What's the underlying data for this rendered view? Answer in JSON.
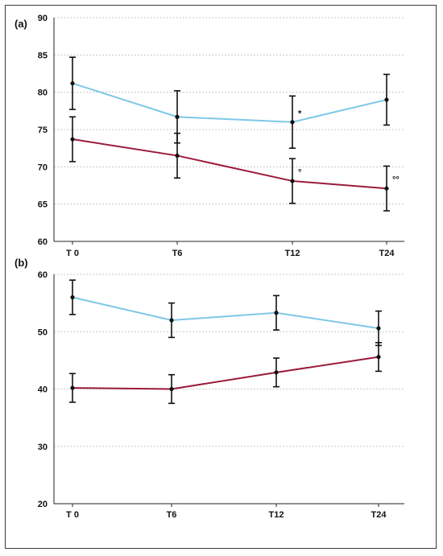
{
  "chart_data": [
    {
      "panel_label": "(a)",
      "type": "line",
      "categories": [
        "T 0",
        "T6",
        "T12",
        "T24"
      ],
      "ylim": [
        60,
        90
      ],
      "yticks": [
        60,
        65,
        70,
        75,
        80,
        85,
        90
      ],
      "grid": true,
      "series": [
        {
          "color": "#7ec8e8",
          "values": [
            81.2,
            76.7,
            76.0,
            79.0
          ],
          "errors": [
            3.5,
            3.5,
            3.5,
            3.4
          ],
          "annotations": [
            "",
            "",
            "*",
            ""
          ]
        },
        {
          "color": "#9b1b3b",
          "values": [
            73.7,
            71.5,
            68.1,
            67.1
          ],
          "errors": [
            3.0,
            3.0,
            3.0,
            3.0
          ],
          "annotations": [
            "",
            "",
            "°",
            "°°"
          ]
        }
      ]
    },
    {
      "panel_label": "(b)",
      "type": "line",
      "categories": [
        "T 0",
        "T6",
        "T12",
        "T24"
      ],
      "ylim": [
        20,
        60
      ],
      "yticks": [
        20,
        30,
        40,
        50,
        60
      ],
      "grid": true,
      "series": [
        {
          "color": "#7ec8e8",
          "values": [
            56.0,
            52.0,
            53.3,
            50.6
          ],
          "errors": [
            3.0,
            3.0,
            3.0,
            3.0
          ],
          "annotations": [
            "",
            "",
            "",
            ""
          ]
        },
        {
          "color": "#9b1b3b",
          "values": [
            40.2,
            40.0,
            42.9,
            45.6
          ],
          "errors": [
            2.5,
            2.5,
            2.5,
            2.5
          ],
          "annotations": [
            "",
            "",
            "",
            ""
          ]
        }
      ]
    }
  ]
}
